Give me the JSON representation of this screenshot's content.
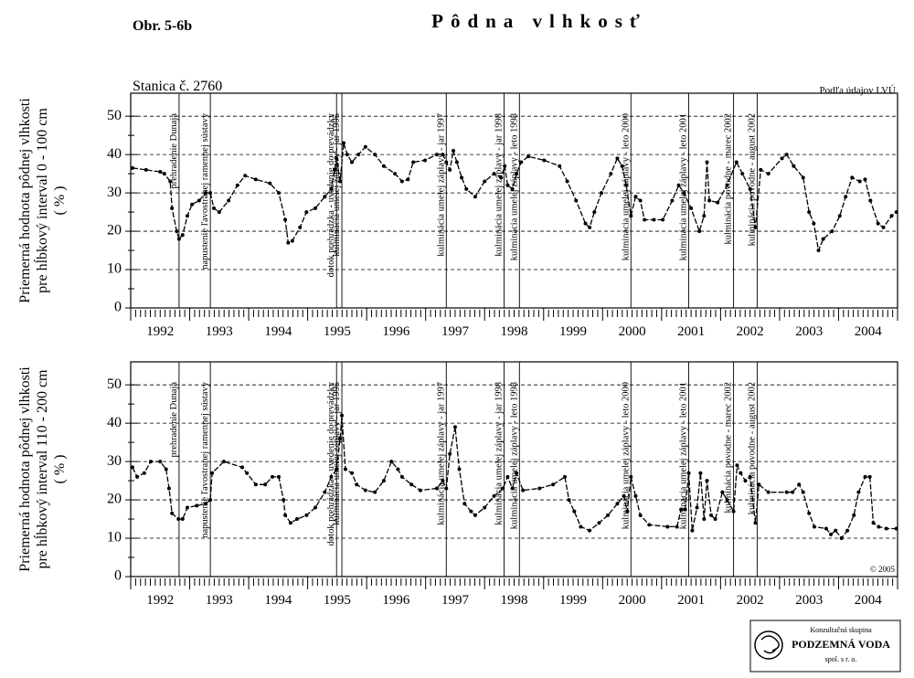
{
  "figure_label": "Obr. 5-6b",
  "title": "Pôdna vlhkosť",
  "station": "Stanica č. 2760",
  "source": "Podľa údajov LVÚ",
  "copyright": "© 2005",
  "logo": {
    "line1": "Konzultačná skupina",
    "line2": "PODZEMNÁ VODA",
    "line3": "spol. s r. o."
  },
  "events": [
    {
      "x": 1992.82,
      "label": "prehradenie Dunaja"
    },
    {
      "x": 1993.35,
      "label": "napustenie ľavostranej ramennej sústavy"
    },
    {
      "x": 1995.49,
      "label": "dotok prehrádzka - uvedenie do prevádzky"
    },
    {
      "x": 1995.58,
      "label": "kulminácia umelej záplavy - jar 1995"
    },
    {
      "x": 1997.35,
      "label": "kulminácia umelej záplavy - jar 1997"
    },
    {
      "x": 1998.33,
      "label": "kulminácia umelej záplavy - jar 1998"
    },
    {
      "x": 1998.59,
      "label": "kulminácia umelej záplavy - leto 1998"
    },
    {
      "x": 2000.48,
      "label": "kulminácia umelej záplavy - leto 2000"
    },
    {
      "x": 2001.46,
      "label": "kulminácia umelej záplavy - leto 2001"
    },
    {
      "x": 2002.22,
      "label": "kulminácia povodne - marec 2002"
    },
    {
      "x": 2002.62,
      "label": "kulminácia povodne - august 2002"
    }
  ],
  "chart_data": [
    {
      "type": "line",
      "y_label": [
        "Priemerná hodnota pôdnej vlhkosti",
        "pre hĺbkový interval 0 - 100 cm",
        "( % )"
      ],
      "x": [
        1992.03,
        1992.26,
        1992.5,
        1992.57,
        1992.67,
        1992.7,
        1992.78,
        1992.82,
        1992.88,
        1992.96,
        1993.04,
        1993.16,
        1993.27,
        1993.35,
        1993.41,
        1993.5,
        1993.66,
        1993.81,
        1993.94,
        1994.12,
        1994.36,
        1994.51,
        1994.62,
        1994.67,
        1994.74,
        1994.87,
        1994.98,
        1995.13,
        1995.29,
        1995.4,
        1995.46,
        1995.49,
        1995.55,
        1995.61,
        1995.67,
        1995.75,
        1995.86,
        1995.98,
        1996.14,
        1996.29,
        1996.48,
        1996.6,
        1996.7,
        1996.79,
        1996.99,
        1997.19,
        1997.29,
        1997.35,
        1997.41,
        1997.47,
        1997.53,
        1997.61,
        1997.69,
        1997.84,
        1998.0,
        1998.16,
        1998.28,
        1998.34,
        1998.39,
        1998.47,
        1998.54,
        1998.62,
        1998.74,
        1999.01,
        1999.27,
        1999.4,
        1999.55,
        1999.71,
        1999.78,
        1999.86,
        1999.98,
        2000.14,
        2000.25,
        2000.33,
        2000.4,
        2000.48,
        2000.56,
        2000.64,
        2000.71,
        2000.87,
        2001.02,
        2001.18,
        2001.29,
        2001.38,
        2001.5,
        2001.64,
        2001.72,
        2001.77,
        2001.81,
        2001.95,
        2002.11,
        2002.27,
        2002.37,
        2002.5,
        2002.59,
        2002.68,
        2002.81,
        2003.04,
        2003.12,
        2003.24,
        2003.4,
        2003.5,
        2003.58,
        2003.66,
        2003.74,
        2003.89,
        2004.02,
        2004.12,
        2004.23,
        2004.36,
        2004.45,
        2004.54,
        2004.67,
        2004.76,
        2004.9,
        2004.98
      ],
      "series": [
        {
          "color": "#000000",
          "values": [
            36.5,
            36,
            35.5,
            35,
            33,
            26,
            20,
            18,
            19,
            24,
            27,
            28,
            30,
            30,
            26,
            25,
            28,
            32,
            34.5,
            33.5,
            32.5,
            30,
            23,
            17,
            17.5,
            21,
            25,
            26,
            29,
            31,
            36,
            39,
            33,
            43,
            40,
            38,
            40,
            42,
            40,
            37,
            35,
            33,
            33.5,
            38,
            38.5,
            40,
            40,
            38,
            36,
            41,
            38,
            34,
            31,
            29,
            33,
            35,
            34,
            37,
            32,
            31,
            35,
            38,
            39.5,
            38.5,
            37,
            33,
            28,
            22,
            21,
            25,
            30,
            35,
            39,
            37,
            32,
            24,
            29,
            28,
            23,
            23,
            23,
            28,
            32,
            30,
            26,
            20,
            24,
            38,
            28,
            27.5,
            32,
            38,
            35,
            31,
            21,
            36,
            35,
            39,
            40,
            37,
            34,
            25,
            22,
            15,
            18,
            20,
            24,
            29,
            34,
            33,
            33.5,
            28,
            22,
            21,
            24,
            25
          ]
        }
      ],
      "xlim": [
        1992,
        2005
      ],
      "xticks": [
        1992,
        1993,
        1994,
        1995,
        1996,
        1997,
        1998,
        1999,
        2000,
        2001,
        2002,
        2003,
        2004
      ],
      "ylim": [
        0,
        56
      ],
      "yticks": [
        0,
        10,
        20,
        30,
        40,
        50
      ],
      "grid": true
    },
    {
      "type": "line",
      "y_label": [
        "Priemerná hodnota pôdnej vlhkosti",
        "pre hĺbkový interval 110 - 200 cm",
        "( % )"
      ],
      "x": [
        1992.03,
        1992.11,
        1992.23,
        1992.34,
        1992.5,
        1992.6,
        1992.65,
        1992.7,
        1992.81,
        1992.88,
        1992.96,
        1993.12,
        1993.27,
        1993.35,
        1993.38,
        1993.58,
        1993.89,
        1993.97,
        1994.12,
        1994.28,
        1994.4,
        1994.51,
        1994.59,
        1994.62,
        1994.71,
        1994.82,
        1994.98,
        1995.13,
        1995.29,
        1995.4,
        1995.49,
        1995.55,
        1995.58,
        1995.64,
        1995.75,
        1995.83,
        1995.98,
        1996.14,
        1996.29,
        1996.42,
        1996.53,
        1996.6,
        1996.76,
        1996.91,
        1997.19,
        1997.29,
        1997.35,
        1997.41,
        1997.5,
        1997.57,
        1997.66,
        1997.77,
        1997.84,
        1998.0,
        1998.16,
        1998.31,
        1998.39,
        1998.47,
        1998.54,
        1998.65,
        1998.93,
        1999.16,
        1999.36,
        1999.43,
        1999.52,
        1999.63,
        1999.78,
        1999.94,
        2000.09,
        2000.25,
        2000.36,
        2000.42,
        2000.48,
        2000.56,
        2000.64,
        2000.79,
        2001.1,
        2001.26,
        2001.33,
        2001.4,
        2001.46,
        2001.52,
        2001.6,
        2001.66,
        2001.72,
        2001.77,
        2001.84,
        2001.91,
        2002.03,
        2002.11,
        2002.22,
        2002.28,
        2002.34,
        2002.42,
        2002.5,
        2002.59,
        2002.65,
        2002.81,
        2003.12,
        2003.22,
        2003.33,
        2003.4,
        2003.5,
        2003.59,
        2003.79,
        2003.87,
        2003.95,
        2004.05,
        2004.15,
        2004.26,
        2004.34,
        2004.45,
        2004.53,
        2004.59,
        2004.68,
        2004.81,
        2004.98
      ],
      "series": [
        {
          "color": "#000000",
          "values": [
            28.5,
            26,
            27,
            30,
            30,
            28,
            23,
            16.5,
            15,
            15,
            18,
            18.5,
            19,
            20,
            27,
            30,
            28.5,
            27,
            24,
            24,
            26,
            26,
            20,
            16,
            14,
            15,
            16,
            18,
            22,
            26,
            28,
            36,
            42,
            28,
            27,
            24,
            22.5,
            22,
            25,
            30,
            28,
            26,
            24,
            22.5,
            23,
            25,
            23,
            32,
            39,
            28,
            19,
            17,
            16,
            18,
            21,
            23,
            26,
            23,
            27,
            22.5,
            23,
            24,
            26,
            20,
            17,
            13,
            12,
            14,
            16,
            19,
            21,
            17,
            26,
            21,
            16,
            13.5,
            13,
            13,
            17.5,
            17.5,
            27,
            12,
            18,
            27,
            15,
            25,
            16,
            15,
            22,
            20,
            17,
            29,
            27,
            25,
            26,
            14,
            24,
            22,
            22,
            22,
            24,
            22,
            16.5,
            13,
            12.5,
            11,
            12,
            10,
            12,
            16,
            22,
            26,
            26,
            14,
            13,
            12.5,
            12.5
          ]
        }
      ],
      "xlim": [
        1992,
        2005
      ],
      "xticks": [
        1992,
        1993,
        1994,
        1995,
        1996,
        1997,
        1998,
        1999,
        2000,
        2001,
        2002,
        2003,
        2004
      ],
      "ylim": [
        0,
        56
      ],
      "yticks": [
        0,
        10,
        20,
        30,
        40,
        50
      ],
      "grid": true
    }
  ]
}
